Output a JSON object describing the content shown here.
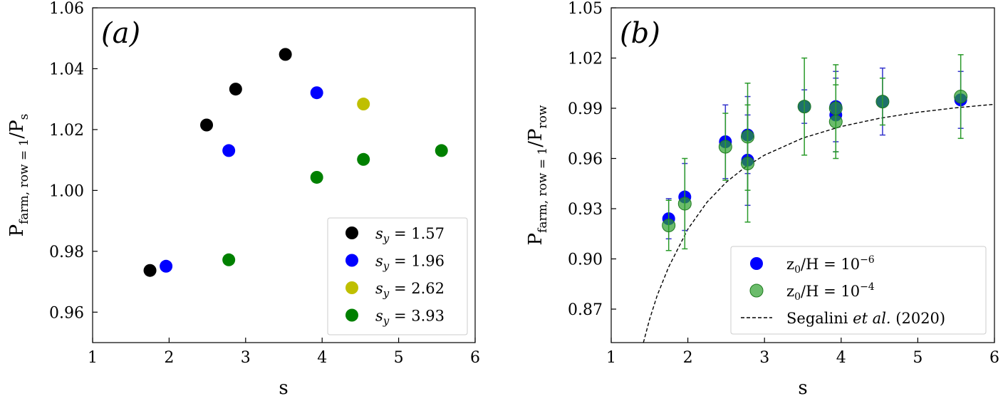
{
  "chart_data": [
    {
      "type": "scatter",
      "panel_label": "(a)",
      "xlabel": "s",
      "ylabel": "P farm, row = 1 / P s",
      "ylabel_main": "P",
      "ylabel_sub": "farm, row = 1",
      "ylabel_slash": "/P",
      "ylabel_sub2": "s",
      "xlim": [
        1,
        6
      ],
      "ylim": [
        0.95,
        1.06
      ],
      "xticks": [
        "1",
        "2",
        "3",
        "4",
        "5",
        "6"
      ],
      "yticks": [
        "0.96",
        "0.98",
        "1.00",
        "1.02",
        "1.04",
        "1.06"
      ],
      "legend_position": "lower-right",
      "series": [
        {
          "name": "s_y = 1.57",
          "legend_var": "s",
          "legend_sub": "y",
          "legend_val": " = 1.57",
          "color": "#000000",
          "points": [
            [
              1.75,
              0.9737
            ],
            [
              2.49,
              1.0215
            ],
            [
              2.87,
              1.0333
            ],
            [
              3.52,
              1.0447
            ]
          ]
        },
        {
          "name": "s_y = 1.96",
          "legend_var": "s",
          "legend_sub": "y",
          "legend_val": " = 1.96",
          "color": "#0000ff",
          "points": [
            [
              1.96,
              0.9751
            ],
            [
              2.78,
              1.0131
            ],
            [
              3.93,
              1.0321
            ]
          ]
        },
        {
          "name": "s_y = 2.62",
          "legend_var": "s",
          "legend_sub": "y",
          "legend_val": " = 2.62",
          "color": "#bfbf00",
          "points": [
            [
              4.54,
              1.0284
            ]
          ]
        },
        {
          "name": "s_y = 3.93",
          "legend_var": "s",
          "legend_sub": "y",
          "legend_val": " = 3.93",
          "color": "#008000",
          "points": [
            [
              2.78,
              0.9772
            ],
            [
              3.93,
              1.0043
            ],
            [
              4.54,
              1.0102
            ],
            [
              5.56,
              1.0131
            ]
          ]
        }
      ]
    },
    {
      "type": "scatter",
      "panel_label": "(b)",
      "xlabel": "s",
      "ylabel": "P farm, row = 1 / P row",
      "ylabel_main": "P",
      "ylabel_sub": "farm, row = 1",
      "ylabel_slash": "/P",
      "ylabel_sub2": "row",
      "xlim": [
        1,
        6
      ],
      "ylim": [
        0.85,
        1.05
      ],
      "xticks": [
        "1",
        "2",
        "3",
        "4",
        "5",
        "6"
      ],
      "yticks": [
        "0.87",
        "0.90",
        "0.93",
        "0.96",
        "0.99",
        "1.02",
        "1.05"
      ],
      "legend_position": "lower-right",
      "series": [
        {
          "name": "z0/H = 10^-6",
          "legend_main": "z",
          "legend_sub": "0",
          "legend_mid": "/H = 10",
          "legend_sup": "−6",
          "color": "#0000ff",
          "errcolor": "#3333cc",
          "alpha": 1.0,
          "points": [
            [
              1.75,
              0.924,
              0.012
            ],
            [
              1.96,
              0.937,
              0.02
            ],
            [
              2.49,
              0.97,
              0.022
            ],
            [
              2.78,
              0.974,
              0.023
            ],
            [
              2.78,
              0.959,
              0.027
            ],
            [
              3.52,
              0.991,
              0.01
            ],
            [
              3.93,
              0.991,
              0.021
            ],
            [
              3.93,
              0.986,
              0.022
            ],
            [
              4.54,
              0.994,
              0.02
            ],
            [
              5.56,
              0.995,
              0.017
            ]
          ]
        },
        {
          "name": "z0/H = 10^-4",
          "legend_main": "z",
          "legend_sub": "0",
          "legend_mid": "/H = 10",
          "legend_sup": "−4",
          "color": "#2ca02c",
          "errcolor": "#2a9a2a",
          "alpha": 0.7,
          "points": [
            [
              1.75,
              0.92,
              0.015
            ],
            [
              1.96,
              0.933,
              0.027
            ],
            [
              2.49,
              0.967,
              0.02
            ],
            [
              2.78,
              0.973,
              0.032
            ],
            [
              2.78,
              0.957,
              0.035
            ],
            [
              3.52,
              0.991,
              0.029
            ],
            [
              3.93,
              0.99,
              0.026
            ],
            [
              3.93,
              0.982,
              0.022
            ],
            [
              4.54,
              0.994,
              0.014
            ],
            [
              5.56,
              0.997,
              0.025
            ]
          ]
        },
        {
          "name": "Segalini et al. (2020)",
          "legend_pre": "Segalini ",
          "legend_it": "et al.",
          "legend_post": " (2020)",
          "kind": "dashed-curve",
          "color": "#000000",
          "curve": [
            [
              1.42,
              0.85
            ],
            [
              1.5,
              0.8638
            ],
            [
              1.6,
              0.8782
            ],
            [
              1.75,
              0.8952
            ],
            [
              2.0,
              0.9178
            ],
            [
              2.25,
              0.9339
            ],
            [
              2.5,
              0.9458
            ],
            [
              2.75,
              0.9549
            ],
            [
              3.0,
              0.962
            ],
            [
              3.5,
              0.9722
            ],
            [
              4.0,
              0.9791
            ],
            [
              4.5,
              0.984
            ],
            [
              5.0,
              0.9876
            ],
            [
              5.5,
              0.9903
            ],
            [
              6.0,
              0.9924
            ]
          ]
        }
      ]
    }
  ]
}
